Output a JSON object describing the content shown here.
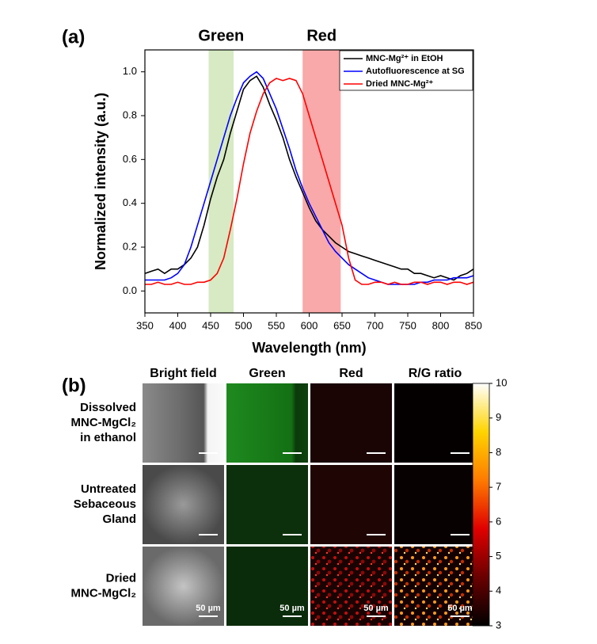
{
  "chart_data": [
    {
      "type": "line",
      "panel": "(a)",
      "xlabel": "Wavelength (nm)",
      "ylabel": "Normalized intensity (a.u.)",
      "xlim": [
        350,
        850
      ],
      "ylim": [
        -0.1,
        1.1
      ],
      "xticks": [
        350,
        400,
        450,
        500,
        550,
        600,
        650,
        700,
        750,
        800,
        850
      ],
      "yticks": [
        {
          "value": 0,
          "label": "0.0"
        },
        0.2,
        0.4,
        0.6,
        0.8,
        {
          "value": 1,
          "label": "1.0"
        }
      ],
      "legend": "upper right",
      "bands": [
        {
          "label": "Green",
          "range": [
            447,
            485
          ],
          "color": "#d7eac3"
        },
        {
          "label": "Red",
          "range": [
            590,
            648
          ],
          "color": "#f9a9a9"
        }
      ],
      "x": [
        350,
        360,
        370,
        380,
        390,
        400,
        410,
        420,
        430,
        440,
        450,
        460,
        470,
        480,
        490,
        500,
        510,
        520,
        530,
        540,
        550,
        560,
        570,
        580,
        590,
        600,
        610,
        620,
        630,
        640,
        650,
        660,
        670,
        680,
        690,
        700,
        710,
        720,
        730,
        740,
        750,
        760,
        770,
        780,
        790,
        800,
        810,
        820,
        830,
        840,
        850
      ],
      "series": [
        {
          "name": "MNC-Mg²⁺ in EtOH",
          "color": "#000000",
          "values": [
            0.08,
            0.09,
            0.1,
            0.08,
            0.1,
            0.1,
            0.12,
            0.15,
            0.2,
            0.3,
            0.42,
            0.52,
            0.6,
            0.72,
            0.82,
            0.92,
            0.96,
            0.98,
            0.93,
            0.85,
            0.78,
            0.7,
            0.6,
            0.52,
            0.45,
            0.38,
            0.32,
            0.28,
            0.25,
            0.22,
            0.2,
            0.18,
            0.17,
            0.16,
            0.15,
            0.14,
            0.13,
            0.12,
            0.11,
            0.1,
            0.1,
            0.08,
            0.08,
            0.07,
            0.06,
            0.07,
            0.06,
            0.05,
            0.07,
            0.08,
            0.1
          ]
        },
        {
          "name": "Autofluorescence at SG",
          "color": "#0000ff",
          "values": [
            0.05,
            0.05,
            0.05,
            0.05,
            0.06,
            0.08,
            0.12,
            0.2,
            0.3,
            0.4,
            0.5,
            0.6,
            0.7,
            0.8,
            0.88,
            0.95,
            0.98,
            1.0,
            0.97,
            0.9,
            0.83,
            0.74,
            0.65,
            0.55,
            0.47,
            0.4,
            0.34,
            0.28,
            0.22,
            0.18,
            0.15,
            0.12,
            0.1,
            0.08,
            0.06,
            0.05,
            0.04,
            0.03,
            0.03,
            0.03,
            0.03,
            0.03,
            0.04,
            0.04,
            0.05,
            0.05,
            0.05,
            0.06,
            0.06,
            0.06,
            0.07
          ]
        },
        {
          "name": "Dried MNC-Mg²⁺",
          "color": "#ff0000",
          "values": [
            0.03,
            0.03,
            0.04,
            0.03,
            0.03,
            0.04,
            0.03,
            0.03,
            0.04,
            0.04,
            0.05,
            0.08,
            0.15,
            0.28,
            0.42,
            0.58,
            0.72,
            0.82,
            0.9,
            0.95,
            0.97,
            0.96,
            0.97,
            0.96,
            0.9,
            0.8,
            0.7,
            0.6,
            0.5,
            0.4,
            0.3,
            0.15,
            0.05,
            0.03,
            0.03,
            0.04,
            0.04,
            0.03,
            0.04,
            0.03,
            0.03,
            0.04,
            0.04,
            0.03,
            0.04,
            0.04,
            0.03,
            0.04,
            0.04,
            0.03,
            0.04
          ]
        }
      ]
    },
    {
      "type": "colorbar",
      "panel": "(b)",
      "columns": [
        "Bright field",
        "Green",
        "Red",
        "R/G ratio"
      ],
      "rows": [
        [
          "Dissolved",
          "MNC-MgCl₂",
          "in ethanol"
        ],
        [
          "Untreated",
          "Sebaceous",
          "Gland"
        ],
        [
          "Dried",
          "MNC-MgCl₂"
        ]
      ],
      "scale_bar": "50 µm",
      "clim": [
        3,
        10
      ],
      "ticks": [
        3,
        4,
        5,
        6,
        7,
        8,
        9,
        10
      ],
      "colors": [
        "#000000",
        "#6a0000",
        "#e00000",
        "#ff7a00",
        "#ffd400",
        "#ffffff"
      ]
    }
  ]
}
